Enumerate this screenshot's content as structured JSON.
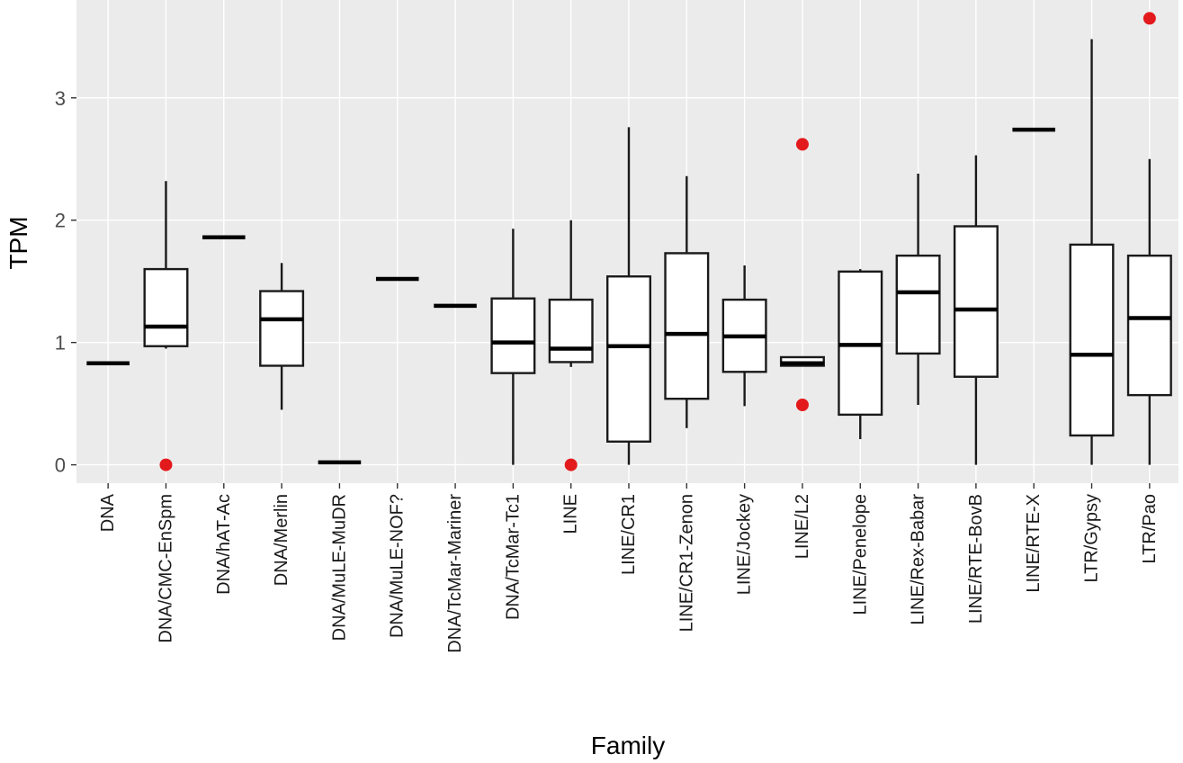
{
  "chart_data": {
    "type": "boxplot",
    "xlabel": "Family",
    "ylabel": "TPM",
    "ylim": [
      -0.15,
      3.8
    ],
    "yticks": [
      0,
      1,
      2,
      3
    ],
    "grid": true,
    "outlier_color": "#e31a1c",
    "panel_color": "#ebebeb",
    "categories": [
      "DNA",
      "DNA/CMC-EnSpm",
      "DNA/hAT-Ac",
      "DNA/Merlin",
      "DNA/MuLE-MuDR",
      "DNA/MuLE-NOF?",
      "DNA/TcMar-Mariner",
      "DNA/TcMar-Tc1",
      "LINE",
      "LINE/CR1",
      "LINE/CR1-Zenon",
      "LINE/Jockey",
      "LINE/L2",
      "LINE/Penelope",
      "LINE/Rex-Babar",
      "LINE/RTE-BovB",
      "LINE/RTE-X",
      "LTR/Gypsy",
      "LTR/Pao"
    ],
    "boxes": [
      {
        "min": 0.83,
        "q1": 0.83,
        "median": 0.83,
        "q3": 0.83,
        "max": 0.83,
        "outliers": []
      },
      {
        "min": 0.95,
        "q1": 0.97,
        "median": 1.13,
        "q3": 1.6,
        "max": 2.32,
        "outliers": [
          0.0
        ]
      },
      {
        "min": 1.86,
        "q1": 1.86,
        "median": 1.86,
        "q3": 1.86,
        "max": 1.86,
        "outliers": []
      },
      {
        "min": 0.45,
        "q1": 0.81,
        "median": 1.19,
        "q3": 1.42,
        "max": 1.65,
        "outliers": []
      },
      {
        "min": 0.02,
        "q1": 0.02,
        "median": 0.02,
        "q3": 0.02,
        "max": 0.02,
        "outliers": []
      },
      {
        "min": 1.52,
        "q1": 1.52,
        "median": 1.52,
        "q3": 1.52,
        "max": 1.52,
        "outliers": []
      },
      {
        "min": 1.3,
        "q1": 1.3,
        "median": 1.3,
        "q3": 1.3,
        "max": 1.3,
        "outliers": []
      },
      {
        "min": 0.0,
        "q1": 0.75,
        "median": 1.0,
        "q3": 1.36,
        "max": 1.93,
        "outliers": []
      },
      {
        "min": 0.8,
        "q1": 0.84,
        "median": 0.95,
        "q3": 1.35,
        "max": 2.0,
        "outliers": [
          0.0
        ]
      },
      {
        "min": 0.0,
        "q1": 0.19,
        "median": 0.97,
        "q3": 1.54,
        "max": 2.76,
        "outliers": []
      },
      {
        "min": 0.3,
        "q1": 0.54,
        "median": 1.07,
        "q3": 1.73,
        "max": 2.36,
        "outliers": []
      },
      {
        "min": 0.48,
        "q1": 0.76,
        "median": 1.05,
        "q3": 1.35,
        "max": 1.63,
        "outliers": []
      },
      {
        "min": 0.81,
        "q1": 0.81,
        "median": 0.83,
        "q3": 0.88,
        "max": 0.88,
        "outliers": [
          2.62,
          0.49
        ]
      },
      {
        "min": 0.21,
        "q1": 0.41,
        "median": 0.98,
        "q3": 1.58,
        "max": 1.6,
        "outliers": []
      },
      {
        "min": 0.49,
        "q1": 0.91,
        "median": 1.41,
        "q3": 1.71,
        "max": 2.38,
        "outliers": []
      },
      {
        "min": 0.0,
        "q1": 0.72,
        "median": 1.27,
        "q3": 1.95,
        "max": 2.53,
        "outliers": []
      },
      {
        "min": 2.74,
        "q1": 2.74,
        "median": 2.74,
        "q3": 2.74,
        "max": 2.74,
        "outliers": []
      },
      {
        "min": 0.0,
        "q1": 0.24,
        "median": 0.9,
        "q3": 1.8,
        "max": 3.48,
        "outliers": []
      },
      {
        "min": 0.0,
        "q1": 0.57,
        "median": 1.2,
        "q3": 1.71,
        "max": 2.5,
        "outliers": [
          3.65
        ]
      }
    ]
  }
}
